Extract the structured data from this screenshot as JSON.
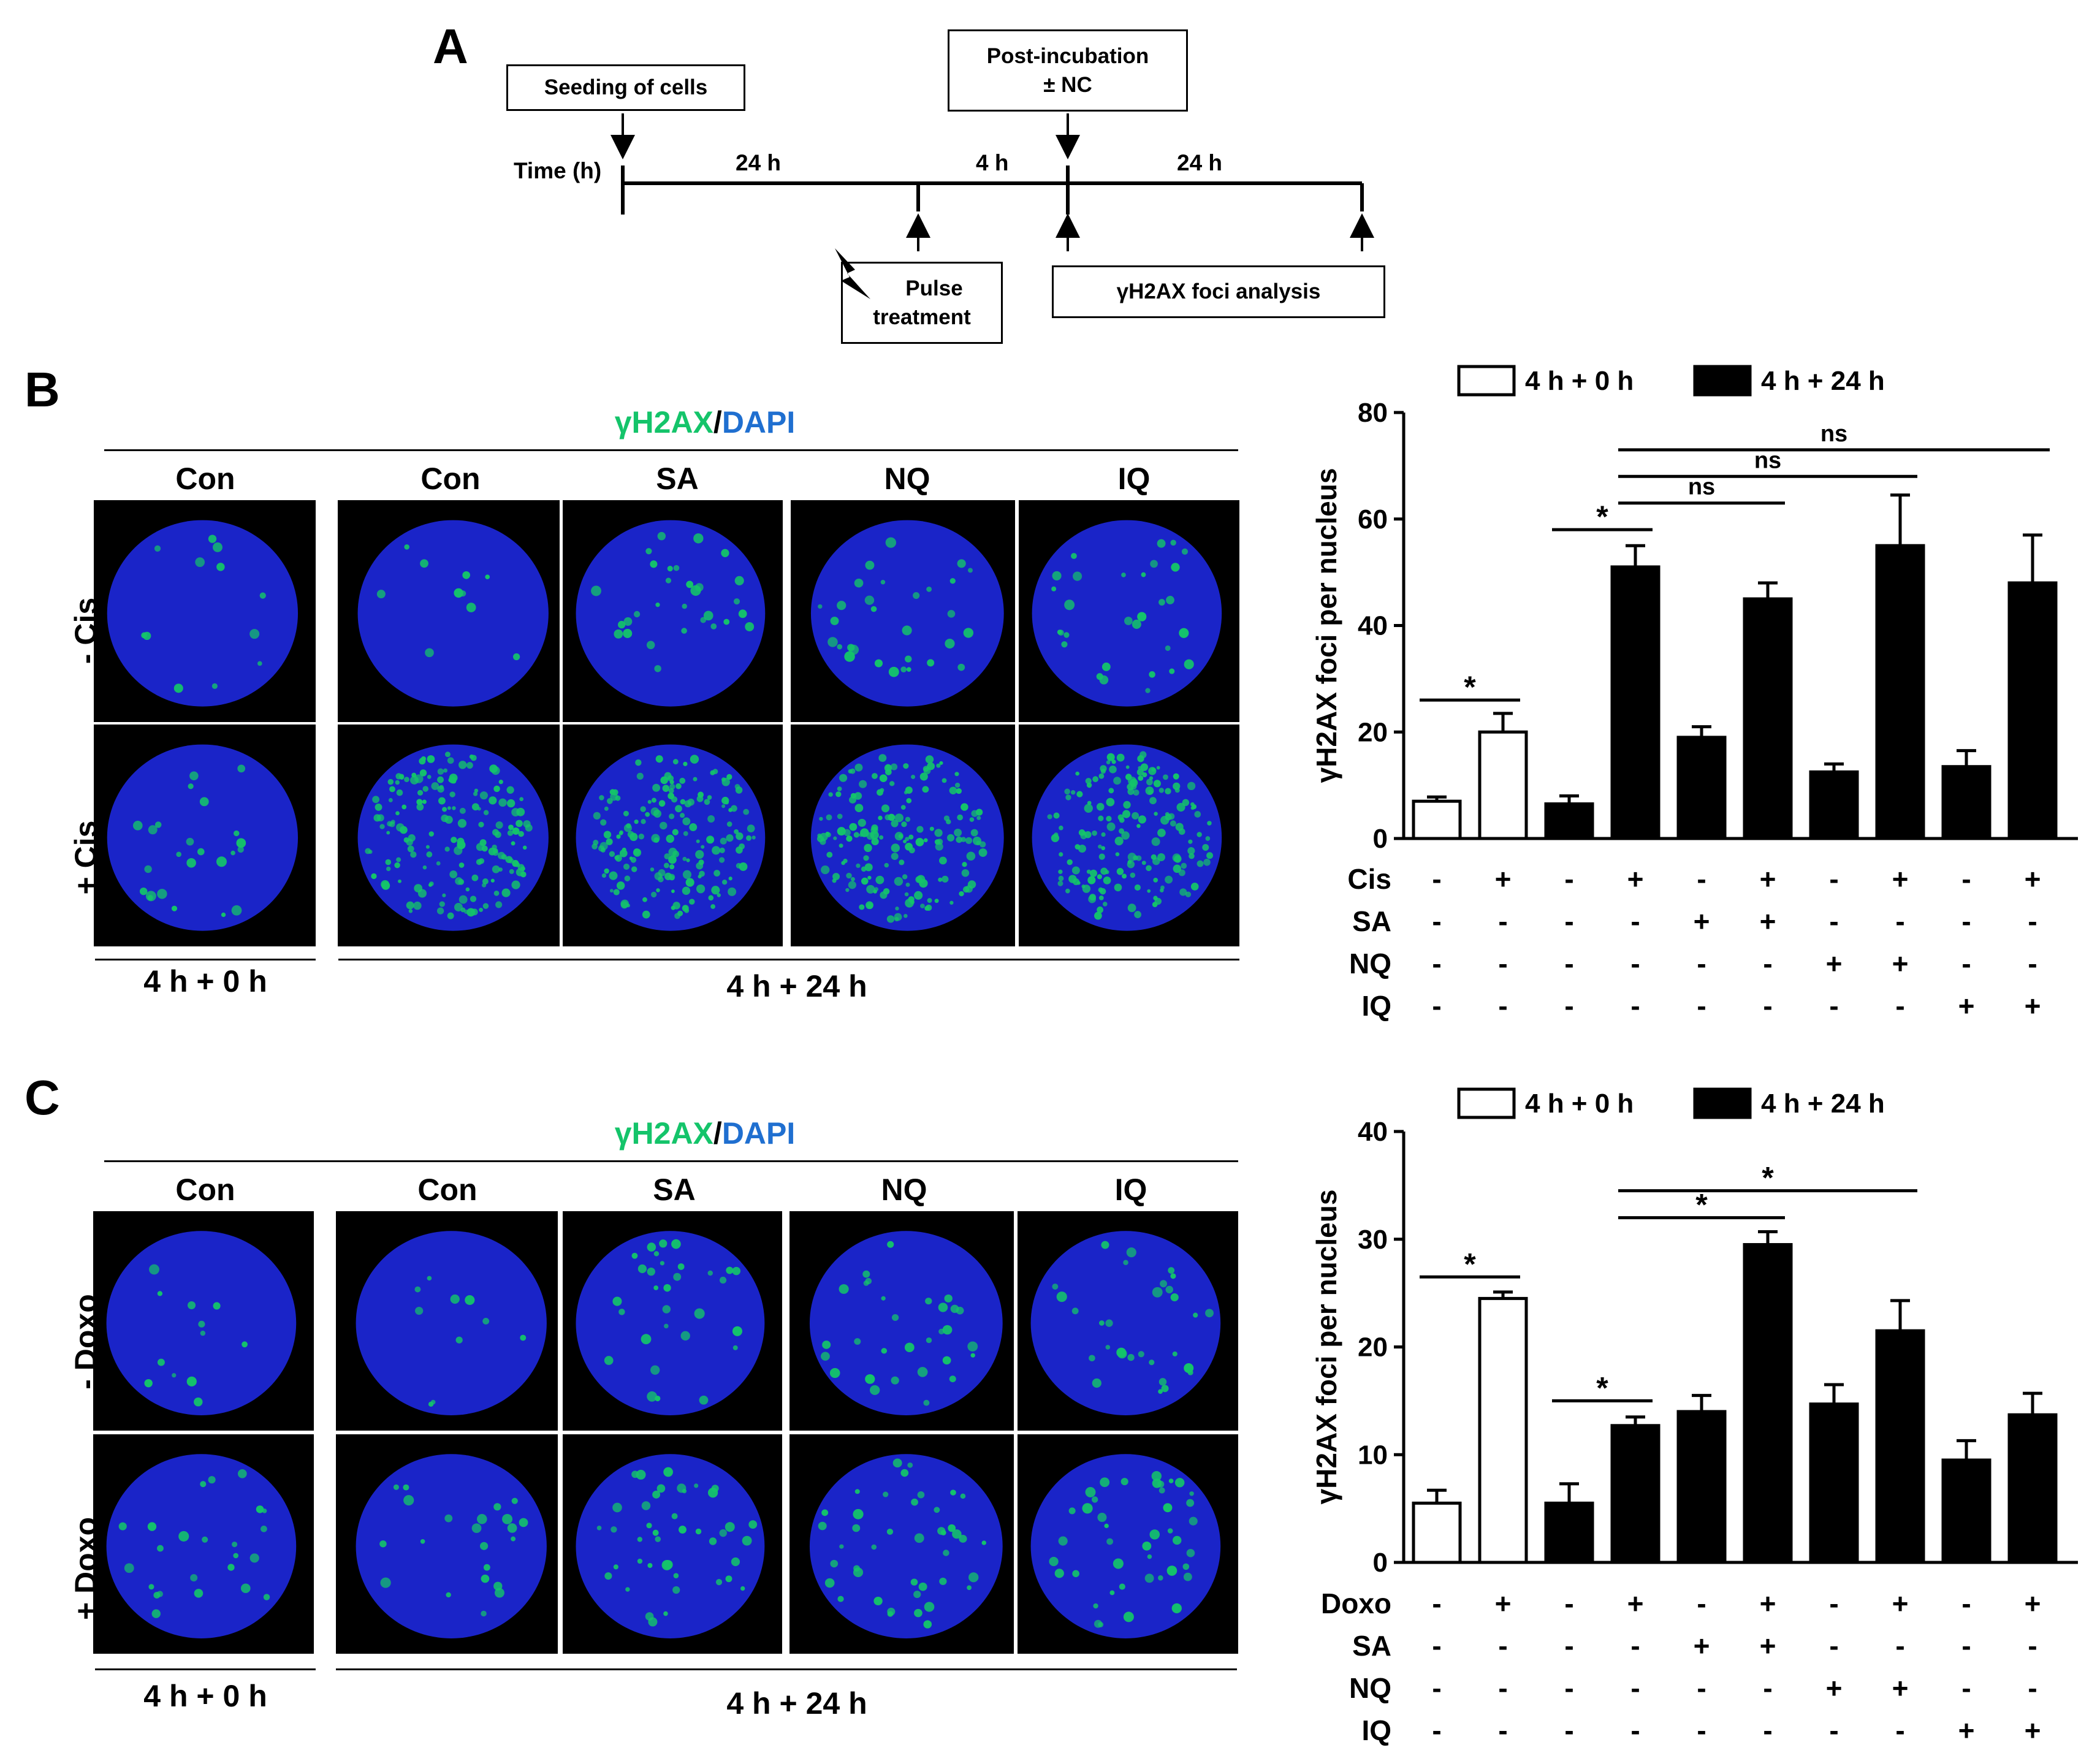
{
  "panels": {
    "a": "A",
    "b": "B",
    "c": "C"
  },
  "timeline": {
    "seeding": "Seeding of cells",
    "post_line1": "Post-incubation",
    "post_line2": "± NC",
    "time_label": "Time (h)",
    "seg1": "24 h",
    "seg2": "4 h",
    "seg3": "24 h",
    "pulse_line1": "Pulse",
    "pulse_line2": "treatment",
    "analysis": "γH2AX foci analysis"
  },
  "micro_b": {
    "stain_green": "γH2AX",
    "stain_sep": "/",
    "stain_blue": "DAPI",
    "cols": [
      "Con",
      "Con",
      "SA",
      "NQ",
      "IQ"
    ],
    "rows": [
      "- Cis",
      "+ Cis"
    ],
    "foot_left": "4 h + 0 h",
    "foot_right": "4 h + 24 h"
  },
  "micro_c": {
    "stain_green": "γH2AX",
    "stain_sep": "/",
    "stain_blue": "DAPI",
    "cols": [
      "Con",
      "Con",
      "SA",
      "NQ",
      "IQ"
    ],
    "rows": [
      "- Doxo",
      "+ Doxo"
    ],
    "foot_left": "4 h + 0 h",
    "foot_right": "4 h + 24 h"
  },
  "colors": {
    "green": "#14c46a",
    "blue": "#1f6fd0",
    "nucleus": "#1a24c8",
    "bar_black": "#000000",
    "bar_white": "#ffffff"
  },
  "chart_data": [
    {
      "type": "bar",
      "title": "",
      "ylabel": "γH2AX foci per nucleus",
      "ylim": [
        0,
        80
      ],
      "yticks": [
        0,
        20,
        40,
        60,
        80
      ],
      "legend": [
        {
          "name": "4 h + 0 h",
          "fill": "white"
        },
        {
          "name": "4 h + 24 h",
          "fill": "black"
        }
      ],
      "bars": [
        {
          "value": 7,
          "error": 0.8,
          "fill": "white"
        },
        {
          "value": 20,
          "error": 3.5,
          "fill": "white"
        },
        {
          "value": 6.5,
          "error": 1.5,
          "fill": "black"
        },
        {
          "value": 51,
          "error": 4,
          "fill": "black"
        },
        {
          "value": 19,
          "error": 2,
          "fill": "black"
        },
        {
          "value": 45,
          "error": 3,
          "fill": "black"
        },
        {
          "value": 12.5,
          "error": 1.5,
          "fill": "black"
        },
        {
          "value": 55,
          "error": 9.5,
          "fill": "black"
        },
        {
          "value": 13.5,
          "error": 3,
          "fill": "black"
        },
        {
          "value": 48,
          "error": 9,
          "fill": "black"
        }
      ],
      "sig": [
        {
          "from": 0,
          "to": 1,
          "label": "*",
          "level": 26
        },
        {
          "from": 2,
          "to": 3,
          "label": "*",
          "level": 58
        },
        {
          "from": 3,
          "to": 5,
          "label": "ns",
          "level": 63
        },
        {
          "from": 3,
          "to": 7,
          "label": "ns",
          "level": 68
        },
        {
          "from": 3,
          "to": 9,
          "label": "ns",
          "level": 73
        }
      ],
      "treatments": [
        {
          "name": "Cis",
          "signs": [
            "-",
            "+",
            "-",
            "+",
            "-",
            "+",
            "-",
            "+",
            "-",
            "+"
          ]
        },
        {
          "name": "SA",
          "signs": [
            "-",
            "-",
            "-",
            "-",
            "+",
            "+",
            "-",
            "-",
            "-",
            "-"
          ]
        },
        {
          "name": "NQ",
          "signs": [
            "-",
            "-",
            "-",
            "-",
            "-",
            "-",
            "+",
            "+",
            "-",
            "-"
          ]
        },
        {
          "name": "IQ",
          "signs": [
            "-",
            "-",
            "-",
            "-",
            "-",
            "-",
            "-",
            "-",
            "+",
            "+"
          ]
        }
      ]
    },
    {
      "type": "bar",
      "title": "",
      "ylabel": "γH2AX foci per nucleus",
      "ylim": [
        0,
        40
      ],
      "yticks": [
        0,
        10,
        20,
        30,
        40
      ],
      "legend": [
        {
          "name": "4 h + 0 h",
          "fill": "white"
        },
        {
          "name": "4 h + 24 h",
          "fill": "black"
        }
      ],
      "bars": [
        {
          "value": 5.5,
          "error": 1.2,
          "fill": "white"
        },
        {
          "value": 24.5,
          "error": 0.6,
          "fill": "white"
        },
        {
          "value": 5.5,
          "error": 1.8,
          "fill": "black"
        },
        {
          "value": 12.7,
          "error": 0.8,
          "fill": "black"
        },
        {
          "value": 14,
          "error": 1.5,
          "fill": "black"
        },
        {
          "value": 29.5,
          "error": 1.2,
          "fill": "black"
        },
        {
          "value": 14.7,
          "error": 1.8,
          "fill": "black"
        },
        {
          "value": 21.5,
          "error": 2.8,
          "fill": "black"
        },
        {
          "value": 9.5,
          "error": 1.8,
          "fill": "black"
        },
        {
          "value": 13.7,
          "error": 2,
          "fill": "black"
        }
      ],
      "sig": [
        {
          "from": 0,
          "to": 1,
          "label": "*",
          "level": 26.5
        },
        {
          "from": 2,
          "to": 3,
          "label": "*",
          "level": 15
        },
        {
          "from": 3,
          "to": 5,
          "label": "*",
          "level": 32
        },
        {
          "from": 3,
          "to": 7,
          "label": "*",
          "level": 34.5
        }
      ],
      "treatments": [
        {
          "name": "Doxo",
          "signs": [
            "-",
            "+",
            "-",
            "+",
            "-",
            "+",
            "-",
            "+",
            "-",
            "+"
          ]
        },
        {
          "name": "SA",
          "signs": [
            "-",
            "-",
            "-",
            "-",
            "+",
            "+",
            "-",
            "-",
            "-",
            "-"
          ]
        },
        {
          "name": "NQ",
          "signs": [
            "-",
            "-",
            "-",
            "-",
            "-",
            "-",
            "+",
            "+",
            "-",
            "-"
          ]
        },
        {
          "name": "IQ",
          "signs": [
            "-",
            "-",
            "-",
            "-",
            "-",
            "-",
            "-",
            "-",
            "+",
            "+"
          ]
        }
      ]
    }
  ]
}
